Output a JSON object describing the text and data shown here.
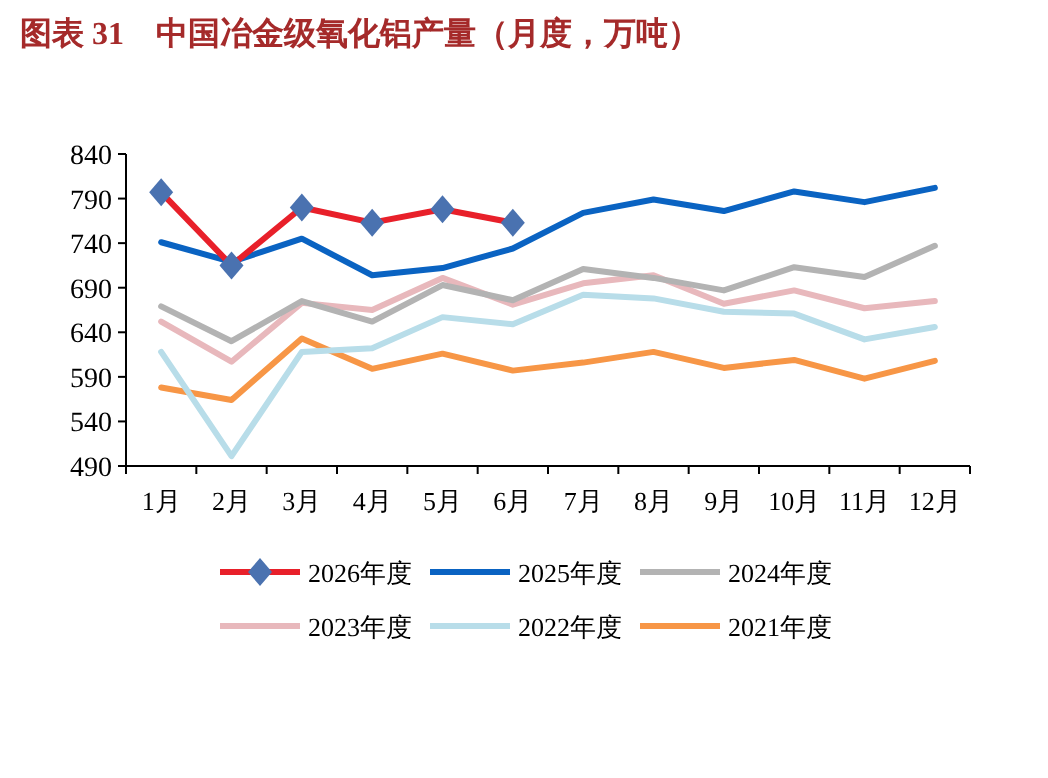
{
  "chart_data": {
    "type": "line",
    "title": "图表 31　中国冶金级氧化铝产量（月度，万吨）",
    "categories": [
      "1月",
      "2月",
      "3月",
      "4月",
      "5月",
      "6月",
      "7月",
      "8月",
      "9月",
      "10月",
      "11月",
      "12月"
    ],
    "ylim": [
      490,
      840
    ],
    "yticks": [
      490,
      540,
      590,
      640,
      690,
      740,
      790,
      840
    ],
    "grid": false,
    "legend": "bottom",
    "series": [
      {
        "name": "2026年度",
        "color": "#e8202a",
        "marker": "diamond",
        "values": [
          797,
          715,
          780,
          763,
          778,
          763,
          null,
          null,
          null,
          null,
          null,
          null
        ]
      },
      {
        "name": "2025年度",
        "color": "#0a63c2",
        "values": [
          741,
          719,
          745,
          704,
          712,
          734,
          774,
          789,
          776,
          798,
          786,
          802
        ]
      },
      {
        "name": "2024年度",
        "color": "#b3b3b3",
        "values": [
          669,
          630,
          675,
          652,
          693,
          676,
          711,
          701,
          687,
          713,
          702,
          737
        ]
      },
      {
        "name": "2023年度",
        "color": "#e8b8bc",
        "values": [
          652,
          607,
          673,
          665,
          701,
          671,
          695,
          704,
          672,
          687,
          667,
          675
        ]
      },
      {
        "name": "2022年度",
        "color": "#b8dde9",
        "values": [
          618,
          501,
          618,
          622,
          657,
          649,
          682,
          678,
          663,
          661,
          632,
          646
        ]
      },
      {
        "name": "2021年度",
        "color": "#f79646",
        "values": [
          578,
          564,
          633,
          599,
          616,
          597,
          606,
          618,
          600,
          609,
          588,
          608
        ]
      }
    ]
  }
}
